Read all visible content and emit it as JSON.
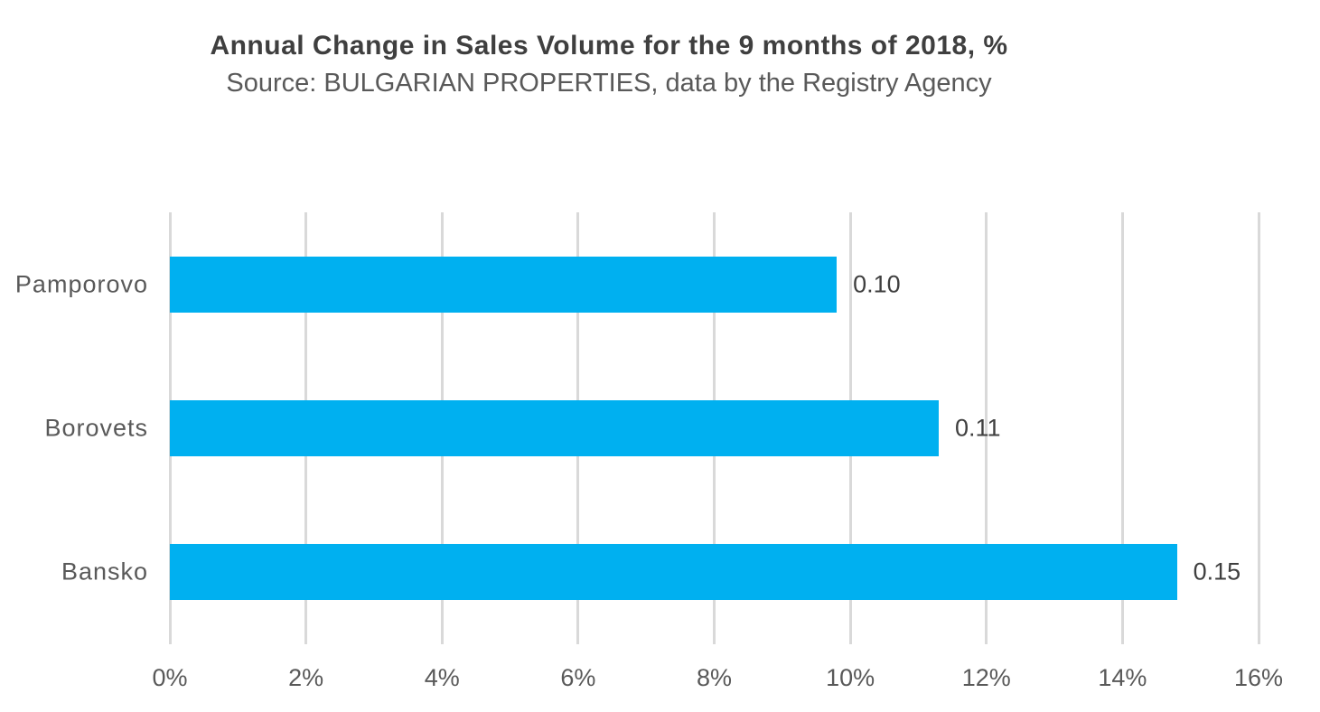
{
  "chart_data": {
    "type": "bar",
    "orientation": "horizontal",
    "title": "Annual Change in Sales Volume for the 9 months of 2018, %",
    "subtitle": "Source: BULGARIAN PROPERTIES, data by the Registry Agency",
    "categories": [
      "Pamporovo",
      "Borovets",
      "Bansko"
    ],
    "series": [
      {
        "name": "Annual change in sales volume",
        "values_percent": [
          9.8,
          11.3,
          14.8
        ],
        "data_labels": [
          "0.10",
          "0.11",
          "0.15"
        ]
      }
    ],
    "xlabel": "",
    "ylabel": "",
    "x_axis": {
      "min": 0,
      "max": 16,
      "step": 2,
      "tick_labels": [
        "0%",
        "2%",
        "4%",
        "6%",
        "8%",
        "10%",
        "12%",
        "14%",
        "16%"
      ]
    },
    "legend": "none",
    "grid": "vertical-only",
    "colors": {
      "bar": "#00B0F0",
      "gridline": "#d9d9d9",
      "title_text": "#3f3f3f",
      "axis_text": "#595959",
      "data_label_text": "#3f3f3f"
    }
  }
}
